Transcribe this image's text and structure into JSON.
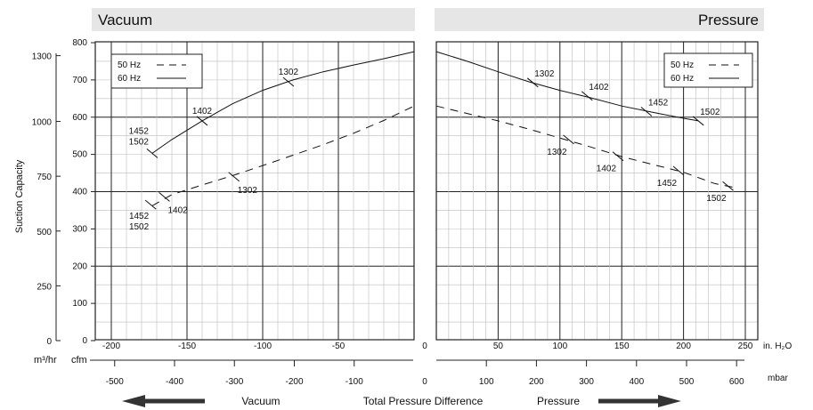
{
  "colors": {
    "panel_header_bg": "#e6e6e6",
    "grid_major": "#222222",
    "grid_minor": "#bcbcbc",
    "curve": "#111111",
    "arrow": "#333333"
  },
  "axis_labels": {
    "y_title": "Suction Capacity",
    "m3hr_unit": "m³/hr",
    "cfm_unit": "cfm",
    "inh2o_unit": "in. H₂O",
    "mbar_unit": "mbar",
    "bottom_vacuum": "Vacuum",
    "bottom_center": "Total Pressure Difference",
    "bottom_pressure": "Pressure"
  },
  "ticks": {
    "m3hr": [
      "1300",
      "1000",
      "750",
      "500",
      "250",
      "0"
    ],
    "cfm": [
      "800",
      "700",
      "600",
      "500",
      "400",
      "300",
      "200",
      "100",
      "0"
    ],
    "vac_inh2o": [
      "-200",
      "-150",
      "-100",
      "-50"
    ],
    "pres_inh2o": [
      "50",
      "100",
      "150",
      "200",
      "250"
    ],
    "vac_mbar": [
      "-500",
      "-400",
      "-300",
      "-200",
      "-100"
    ],
    "pres_mbar": [
      "100",
      "200",
      "300",
      "400",
      "500",
      "600"
    ],
    "zero": "0"
  },
  "chart_data": [
    {
      "type": "line",
      "title": "Vacuum",
      "xlabel": "in. H₂O",
      "ylabel": "Suction Capacity",
      "xlim": [
        -210,
        0
      ],
      "ylim": [
        0,
        800
      ],
      "legend": {
        "placement": "top-left",
        "entries": [
          {
            "label": "50 Hz",
            "style": "dashed"
          },
          {
            "label": "60 Hz",
            "style": "solid"
          }
        ]
      },
      "series": [
        {
          "name": "60 Hz",
          "style": "solid",
          "x": [
            -173,
            -160,
            -140,
            -120,
            -100,
            -80,
            -60,
            -40,
            -20,
            0
          ],
          "y": [
            503,
            540,
            590,
            636,
            672,
            700,
            722,
            740,
            757,
            776
          ]
        },
        {
          "name": "50 Hz",
          "style": "dashed",
          "x": [
            -173,
            -160,
            -140,
            -120,
            -100,
            -80,
            -60,
            -40,
            -20,
            0
          ],
          "y": [
            362,
            392,
            418,
            443,
            470,
            498,
            526,
            557,
            591,
            630
          ]
        }
      ],
      "annotations": [
        {
          "text": "1452\n1502",
          "series": "60 Hz",
          "x": -173,
          "y": 503
        },
        {
          "text": "1402",
          "series": "60 Hz",
          "x": -140,
          "y": 590
        },
        {
          "text": "1302",
          "series": "60 Hz",
          "x": -83,
          "y": 695
        },
        {
          "text": "1452\n1502",
          "series": "50 Hz",
          "x": -174,
          "y": 365
        },
        {
          "text": "1402",
          "series": "50 Hz",
          "x": -165,
          "y": 386
        },
        {
          "text": "1302",
          "series": "50 Hz",
          "x": -119,
          "y": 440
        }
      ]
    },
    {
      "type": "line",
      "title": "Pressure",
      "xlabel": "in. H₂O",
      "ylabel": "Suction Capacity",
      "xlim": [
        0,
        255
      ],
      "ylim": [
        0,
        800
      ],
      "legend": {
        "placement": "top-right",
        "entries": [
          {
            "label": "50 Hz",
            "style": "dashed"
          },
          {
            "label": "60 Hz",
            "style": "solid"
          }
        ]
      },
      "series": [
        {
          "name": "60 Hz",
          "style": "solid",
          "x": [
            0,
            25,
            50,
            75,
            100,
            125,
            150,
            175,
            200,
            212
          ],
          "y": [
            776,
            750,
            722,
            695,
            672,
            652,
            630,
            613,
            597,
            590
          ]
        },
        {
          "name": "50 Hz",
          "style": "dashed",
          "x": [
            0,
            25,
            50,
            75,
            100,
            125,
            150,
            175,
            200,
            225,
            240
          ],
          "y": [
            630,
            610,
            590,
            568,
            544,
            520,
            494,
            473,
            452,
            422,
            412
          ]
        }
      ],
      "annotations": [
        {
          "text": "1302",
          "series": "60 Hz",
          "x": 78,
          "y": 693
        },
        {
          "text": "1402",
          "series": "60 Hz",
          "x": 122,
          "y": 657
        },
        {
          "text": "1452",
          "series": "60 Hz",
          "x": 170,
          "y": 615
        },
        {
          "text": "1502",
          "series": "60 Hz",
          "x": 212,
          "y": 590
        },
        {
          "text": "1302",
          "series": "50 Hz",
          "x": 107,
          "y": 540
        },
        {
          "text": "1402",
          "series": "50 Hz",
          "x": 147,
          "y": 495
        },
        {
          "text": "1452",
          "series": "50 Hz",
          "x": 196,
          "y": 456
        },
        {
          "text": "1502",
          "series": "50 Hz",
          "x": 236,
          "y": 415
        }
      ]
    }
  ]
}
